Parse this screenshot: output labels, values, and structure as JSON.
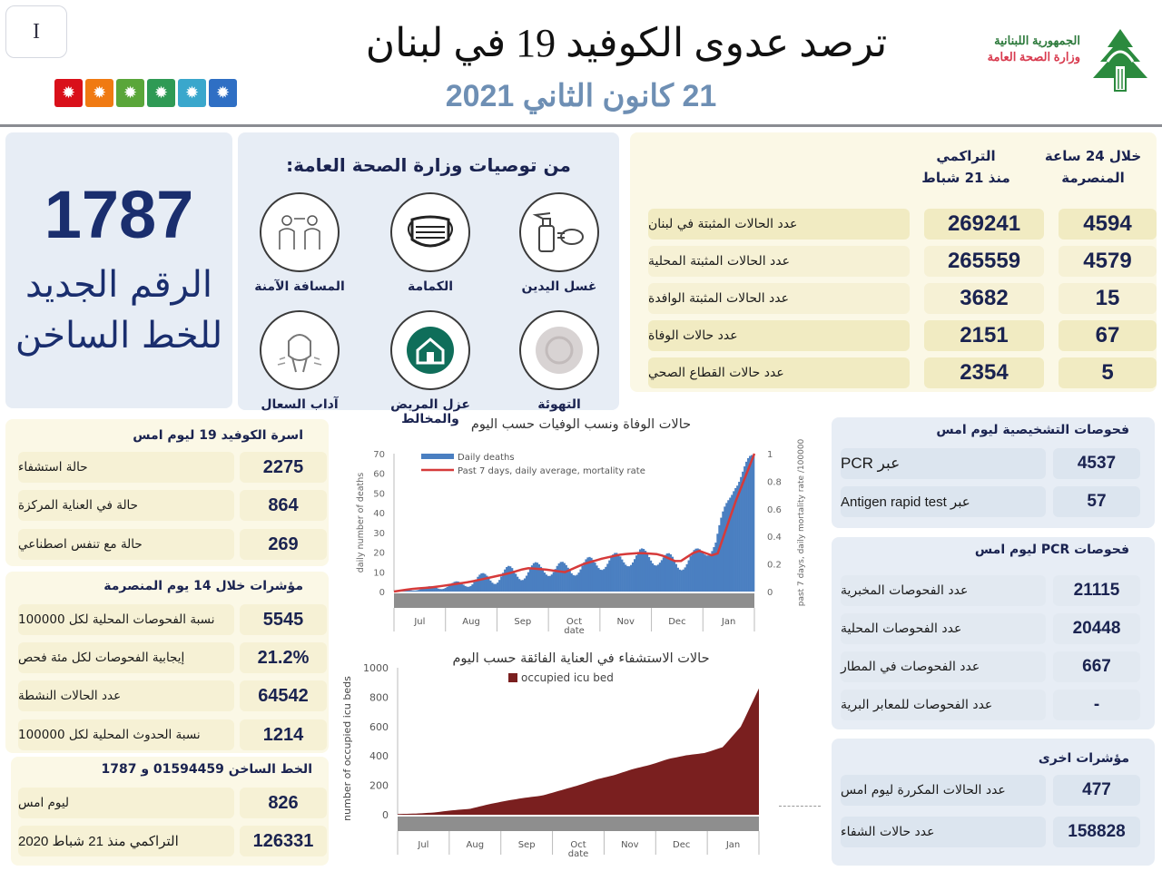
{
  "header": {
    "page_marker": "I",
    "title": "ترصد عدوى الكوفيد 19 في لبنان",
    "date": "21 كانون الثاني 2021",
    "ministry_line1": "الجمهورية اللبنانية",
    "ministry_line2": "وزارة الصحة العامة",
    "severity_colors": [
      "#d9101a",
      "#f07a12",
      "#5aa63a",
      "#2f9a55",
      "#3aa7cc",
      "#2f6fc4"
    ]
  },
  "hotline_box": {
    "number": "1787",
    "text_line1": "الرقم الجديد",
    "text_line2": "للخط الساخن"
  },
  "recommendations": {
    "title": "من توصيات وزارة الصحة العامة:",
    "items": [
      {
        "label": "غسل اليدين",
        "icon": "hand-sanitizer-icon"
      },
      {
        "label": "الكمامة",
        "icon": "face-mask-icon"
      },
      {
        "label": "المسافة الآمنة",
        "icon": "social-distance-icon"
      },
      {
        "label": "التهوئة",
        "icon": "ventilation-icon"
      },
      {
        "label": "عزل المريض والمخالط",
        "icon": "home-isolation-icon"
      },
      {
        "label": "آداب السعال",
        "icon": "cough-etiquette-icon"
      }
    ]
  },
  "main_stats": {
    "col_24h": [
      "خلال 24 ساعة",
      "المنصرمة"
    ],
    "col_cumulative": [
      "التراكمي",
      "منذ 21 شباط"
    ],
    "rows": [
      {
        "label": "عدد الحالات المثبتة في لبنان",
        "cumulative": "269241",
        "last_24h": "4594"
      },
      {
        "label": "عدد الحالات المثبتة المحلية",
        "cumulative": "265559",
        "last_24h": "4579"
      },
      {
        "label": "عدد الحالات المثبتة الوافدة",
        "cumulative": "3682",
        "last_24h": "15"
      },
      {
        "label": "عدد حالات الوفاة",
        "cumulative": "2151",
        "last_24h": "67"
      },
      {
        "label": "عدد حالات القطاع الصحي",
        "cumulative": "2354",
        "last_24h": "5"
      }
    ]
  },
  "hospital_family": {
    "title": "اسرة الكوفيد 19 ليوم امس",
    "rows": [
      {
        "label": "حالة استشفاء",
        "value": "2275"
      },
      {
        "label": "حالة في العناية المركزة",
        "value": "864"
      },
      {
        "label": "حالة مع تنفس اصطناعي",
        "value": "269"
      }
    ]
  },
  "indicators_14d": {
    "title": "مؤشرات خلال 14 يوم المنصرمة",
    "rows": [
      {
        "label": "نسبة الفحوصات  المحلية لكل 100000",
        "value": "5545"
      },
      {
        "label": "إيجابية الفحوصات لكل مئة فحص",
        "value": "21.2%"
      },
      {
        "label": "عدد الحالات النشطة",
        "value": "64542"
      },
      {
        "label": "نسبة الحدوث المحلية لكل 100000",
        "value": "1214"
      }
    ]
  },
  "hotline_stats": {
    "title": "الخط الساخن 01594459 و 1787",
    "rows": [
      {
        "label": "ليوم امس",
        "value": "826"
      },
      {
        "label": "التراكمي منذ 21 شباط 2020",
        "value": "126331"
      }
    ]
  },
  "diagnostic_tests": {
    "title": "فحوصات التشخيصية ليوم امس",
    "rows": [
      {
        "label": "عبر PCR",
        "value": "4537"
      },
      {
        "label": "عبر Antigen rapid test",
        "value": "57"
      }
    ]
  },
  "pcr_tests": {
    "title": "فحوصات PCR ليوم امس",
    "rows": [
      {
        "label": "عدد الفحوصات المخبرية",
        "value": "21115"
      },
      {
        "label": "عدد الفحوصات المحلية",
        "value": "20448"
      },
      {
        "label": "عدد الفحوصات في المطار",
        "value": "667"
      },
      {
        "label": "عدد الفحوصات للمعابر البرية",
        "value": "-"
      }
    ]
  },
  "other_indicators": {
    "title": "مؤشرات اخرى",
    "rows": [
      {
        "label": "عدد الحالات المكررة ليوم امس",
        "value": "477"
      },
      {
        "label": "عدد حالات الشفاء",
        "value": "158828"
      }
    ]
  },
  "chart_data": [
    {
      "type": "bar",
      "title": "حالات الوفاة ونسب الوفيات حسب اليوم",
      "xlabel": "date",
      "ylabel": "daily number of deaths",
      "y2label": "past 7 days, daily mortality rate /100000",
      "ylim": [
        0,
        70
      ],
      "y2lim": [
        0,
        1
      ],
      "yticks": [
        0,
        10,
        20,
        30,
        40,
        50,
        60,
        70
      ],
      "y2ticks": [
        0,
        0.2,
        0.4,
        0.6,
        0.8,
        1
      ],
      "categories": [
        "Jul",
        "Aug",
        "Sep",
        "Oct",
        "Nov",
        "Dec",
        "Jan"
      ],
      "legend": [
        "Daily deaths",
        "Past 7 days, daily average, mortality rate"
      ],
      "legend_position": "top-left",
      "grid": false,
      "series": [
        {
          "name": "Daily deaths",
          "kind": "bar",
          "color": "#4a7fc1",
          "values": [
            0,
            1,
            2,
            3,
            5,
            7,
            9,
            10,
            12,
            11,
            13,
            15,
            16,
            18,
            17,
            14,
            18,
            25,
            56,
            67
          ]
        },
        {
          "name": "Past 7 days, daily average, mortality rate",
          "kind": "line",
          "color": "#d63a3a",
          "values": [
            0,
            0.02,
            0.03,
            0.05,
            0.07,
            0.1,
            0.13,
            0.17,
            0.16,
            0.14,
            0.2,
            0.24,
            0.27,
            0.28,
            0.27,
            0.21,
            0.3,
            0.25,
            0.65,
            1.0
          ]
        }
      ]
    },
    {
      "type": "area",
      "title": "حالات الاستشفاء في العناية الفائقة حسب اليوم",
      "xlabel": "date",
      "ylabel": "number of occupied icu beds",
      "ylim": [
        0,
        1000
      ],
      "yticks": [
        0,
        200,
        400,
        600,
        800,
        1000
      ],
      "categories": [
        "Jul",
        "Aug",
        "Sep",
        "Oct",
        "Nov",
        "Dec",
        "Jan"
      ],
      "legend": [
        "occupied icu bed"
      ],
      "legend_position": "top",
      "grid": false,
      "series": [
        {
          "name": "occupied icu bed",
          "color": "#7a1f1f",
          "values": [
            5,
            8,
            15,
            30,
            40,
            70,
            95,
            115,
            130,
            165,
            200,
            240,
            270,
            310,
            340,
            380,
            405,
            420,
            460,
            600,
            860
          ]
        }
      ]
    }
  ]
}
